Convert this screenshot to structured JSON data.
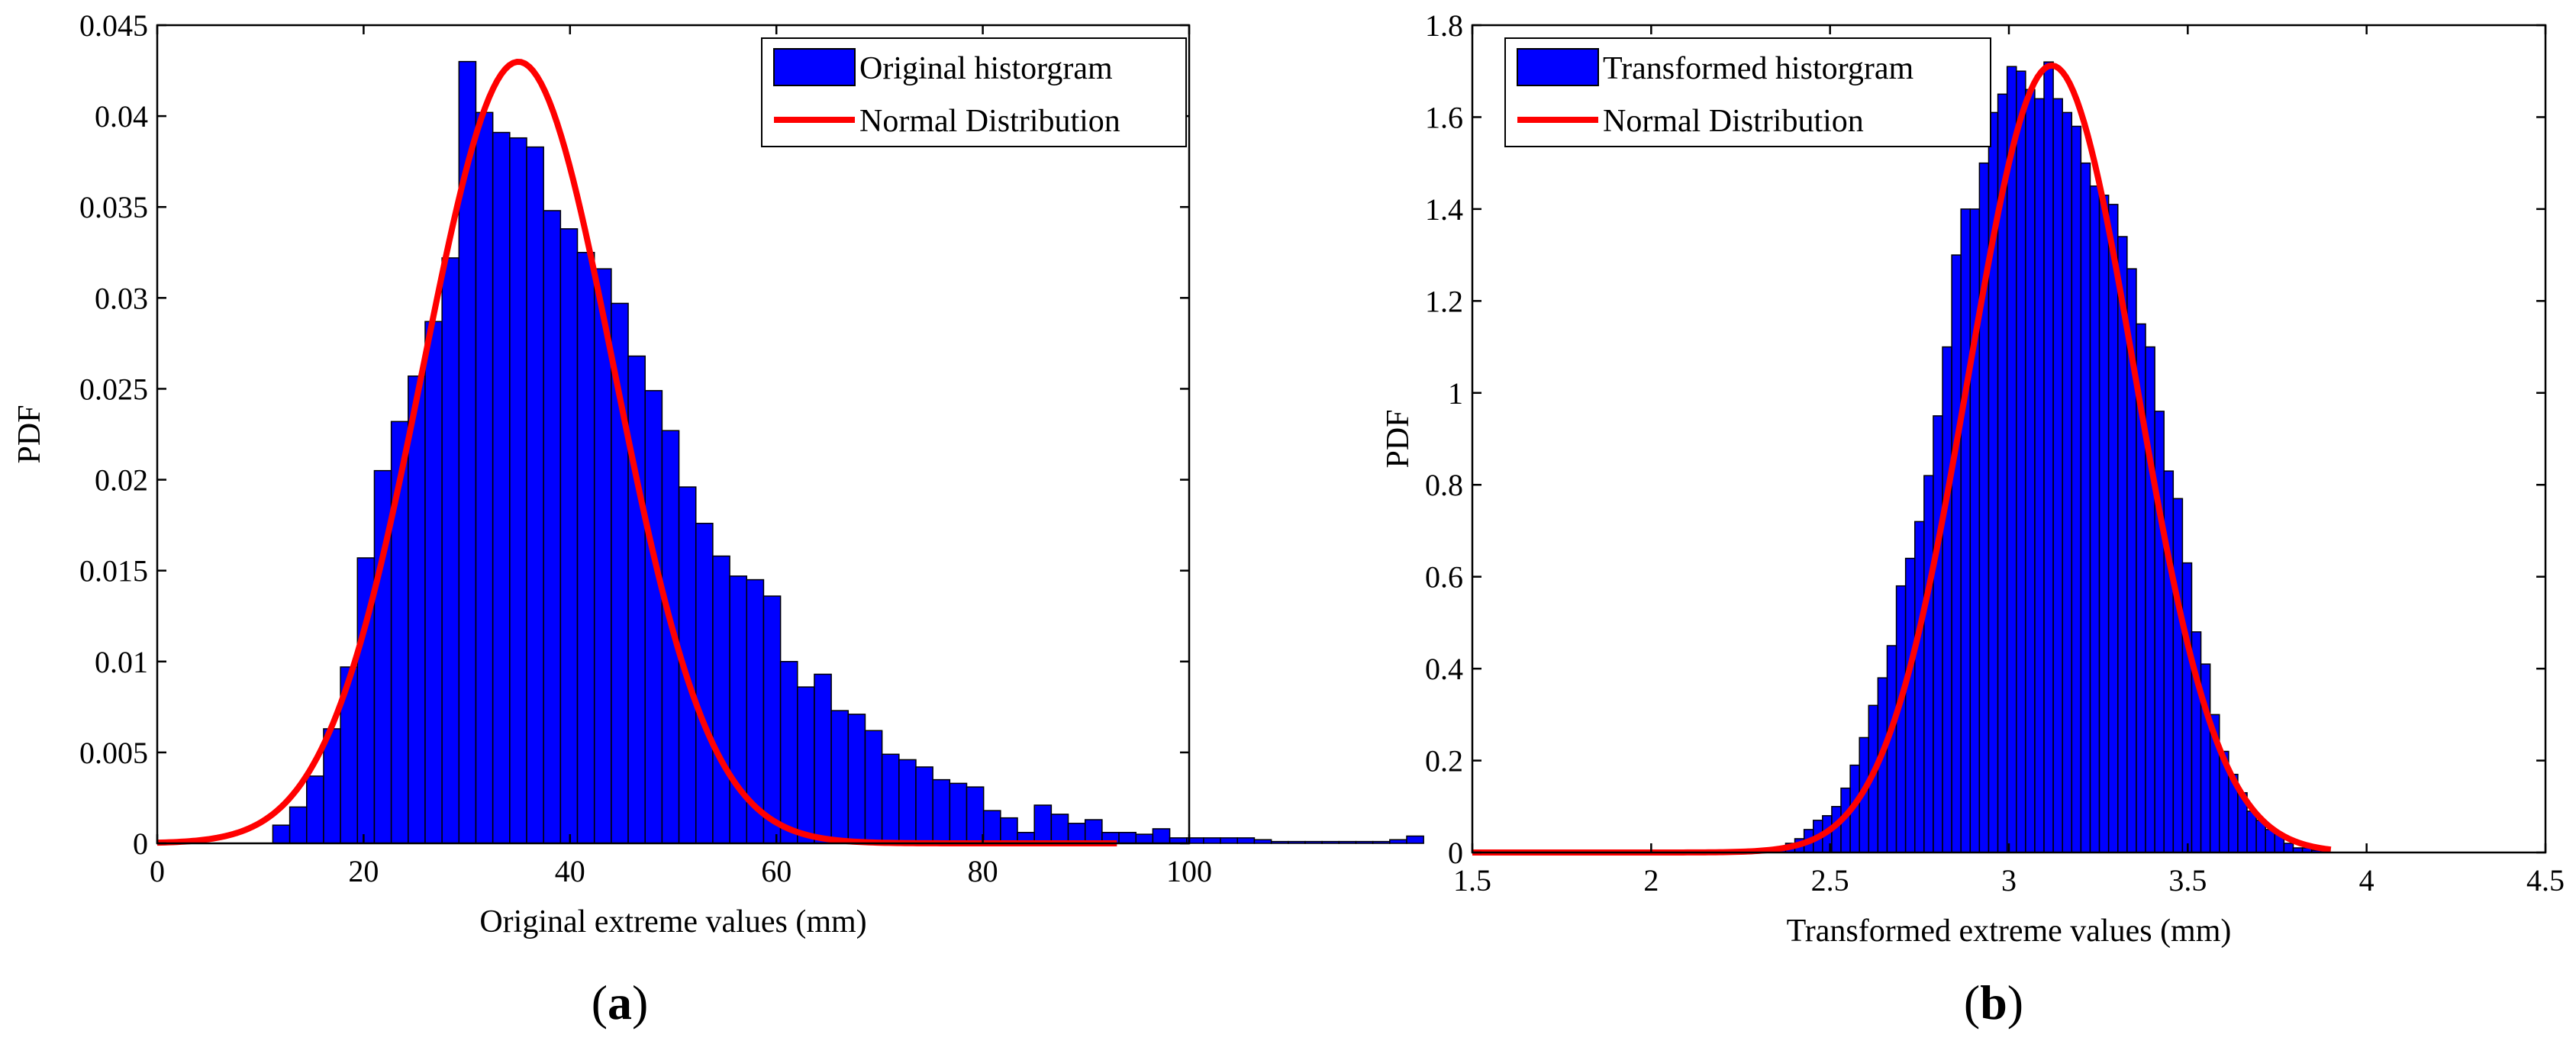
{
  "chart_data": [
    {
      "type": "bar",
      "panel_label": "a",
      "xlabel": "Original extreme values (mm)",
      "ylabel": "PDF",
      "xlim": [
        0,
        100
      ],
      "ylim": [
        0,
        0.045
      ],
      "xticks": [
        "0",
        "20",
        "40",
        "60",
        "80",
        "100"
      ],
      "yticks": [
        "0",
        "0.005",
        "0.01",
        "0.015",
        "0.02",
        "0.025",
        "0.03",
        "0.035",
        "0.04",
        "0.045"
      ],
      "legend_position": "top-right",
      "colors": {
        "histogram": "#0000ff",
        "curve": "#ff0000"
      },
      "series": [
        {
          "name": "Original historgram",
          "kind": "histogram",
          "bin_start": 11.2,
          "bin_width": 1.64,
          "values": [
            0.001,
            0.002,
            0.0037,
            0.0063,
            0.0097,
            0.0157,
            0.0205,
            0.0232,
            0.0257,
            0.0287,
            0.0322,
            0.043,
            0.0402,
            0.0391,
            0.0388,
            0.0383,
            0.0348,
            0.0338,
            0.0325,
            0.0316,
            0.0297,
            0.0268,
            0.0249,
            0.0227,
            0.0196,
            0.0176,
            0.0158,
            0.0147,
            0.0145,
            0.0136,
            0.01,
            0.0086,
            0.0093,
            0.0073,
            0.0071,
            0.0062,
            0.0049,
            0.0046,
            0.0042,
            0.0035,
            0.0033,
            0.0031,
            0.0018,
            0.0014,
            0.0006,
            0.0021,
            0.0016,
            0.0011,
            0.0013,
            0.0006,
            0.0006,
            0.0005,
            0.0008,
            0.0003,
            0.0003,
            0.0003,
            0.0003,
            0.0003,
            0.0002,
            0.0001,
            0.0001,
            0.0001,
            0.0001,
            0.0001,
            0.0001,
            0.0001,
            0.0002,
            0.0004
          ]
        },
        {
          "name": "Normal Distribution",
          "kind": "normal_curve",
          "mean": 35,
          "std": 9.28,
          "x_range": [
            0,
            93
          ]
        }
      ]
    },
    {
      "type": "bar",
      "panel_label": "b",
      "xlabel": "Transformed extreme values (mm)",
      "ylabel": "PDF",
      "xlim": [
        1.5,
        4.5
      ],
      "ylim": [
        0,
        1.8
      ],
      "xticks": [
        "1.5",
        "2",
        "2.5",
        "3",
        "3.5",
        "4",
        "4.5"
      ],
      "yticks": [
        "0",
        "0.2",
        "0.4",
        "0.6",
        "0.8",
        "1",
        "1.2",
        "1.4",
        "1.6",
        "1.8"
      ],
      "legend_position": "top-left",
      "colors": {
        "histogram": "#0000ff",
        "curve": "#ff0000"
      },
      "series": [
        {
          "name": "Transformed historgram",
          "kind": "histogram",
          "bin_start": 2.35,
          "bin_width": 0.0258,
          "values": [
            0.01,
            0.02,
            0.03,
            0.05,
            0.07,
            0.08,
            0.1,
            0.14,
            0.19,
            0.25,
            0.32,
            0.38,
            0.45,
            0.58,
            0.64,
            0.72,
            0.82,
            0.95,
            1.1,
            1.3,
            1.4,
            1.4,
            1.5,
            1.61,
            1.65,
            1.71,
            1.7,
            1.66,
            1.64,
            1.72,
            1.64,
            1.61,
            1.58,
            1.5,
            1.45,
            1.43,
            1.41,
            1.34,
            1.27,
            1.15,
            1.1,
            0.96,
            0.83,
            0.77,
            0.63,
            0.48,
            0.41,
            0.3,
            0.22,
            0.17,
            0.13,
            0.09,
            0.07,
            0.05,
            0.04,
            0.02,
            0.01,
            0.01,
            0.005,
            0.005
          ]
        },
        {
          "name": "Normal Distribution",
          "kind": "normal_curve",
          "mean": 3.12,
          "std": 0.233,
          "x_range": [
            1.5,
            3.9
          ]
        }
      ]
    }
  ]
}
